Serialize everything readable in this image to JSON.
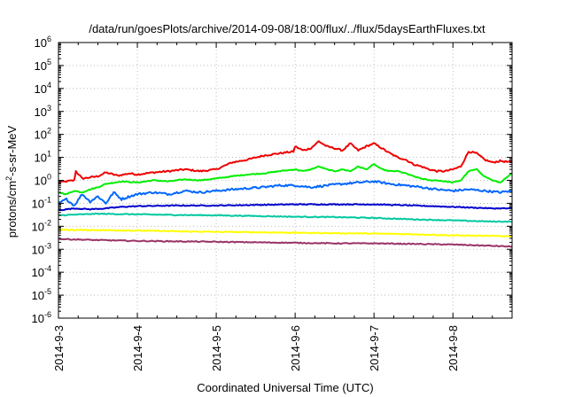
{
  "chart_data": {
    "type": "line",
    "title": "/data/run/goesPlots/archive/2014-09-08/18:00/flux/../flux/5daysEarthFluxes.txt",
    "xlabel": "Coordinated Universal Time (UTC)",
    "ylabel": {
      "base": "protons/cm",
      "sup": "2",
      "rest": "-s-sr-MeV"
    },
    "x_ticks": [
      "2014-9-3",
      "2014-9-4",
      "2014-9-5",
      "2014-9-6",
      "2014-9-7",
      "2014-9-8"
    ],
    "x_range_days": [
      0,
      5.75
    ],
    "y_scale": "log",
    "y_range_exp": [
      -6,
      6
    ],
    "y_tick_exps": [
      "-6",
      "-5",
      "-4",
      "-3",
      "-2",
      "-1",
      "0",
      "1",
      "2",
      "3",
      "4",
      "5",
      "6"
    ],
    "grid": true,
    "legend": "none",
    "series": [
      {
        "color": "#ee0000",
        "x": [
          0,
          0.1,
          0.2,
          0.22,
          0.3,
          0.5,
          0.6,
          0.75,
          0.9,
          1.0,
          1.2,
          1.4,
          1.6,
          1.8,
          2.0,
          2.2,
          2.4,
          2.6,
          2.8,
          2.98,
          3.0,
          3.1,
          3.2,
          3.3,
          3.4,
          3.5,
          3.6,
          3.7,
          3.8,
          3.9,
          4.0,
          4.1,
          4.2,
          4.3,
          4.4,
          4.5,
          4.6,
          4.7,
          4.8,
          4.9,
          5.0,
          5.1,
          5.2,
          5.3,
          5.4,
          5.5,
          5.6,
          5.75
        ],
        "y": [
          0.8,
          0.9,
          1.0,
          2.5,
          1.2,
          1.5,
          2.2,
          1.6,
          2.0,
          1.8,
          2.2,
          2.5,
          3,
          2.5,
          3,
          6,
          8,
          12,
          15,
          18,
          30,
          20,
          25,
          50,
          30,
          25,
          20,
          40,
          20,
          30,
          40,
          25,
          15,
          10,
          8,
          5,
          4,
          3,
          2.5,
          2.5,
          3,
          4,
          18,
          15,
          8,
          6,
          7,
          6
        ]
      },
      {
        "color": "#00ee00",
        "x": [
          0,
          0.1,
          0.2,
          0.3,
          0.4,
          0.5,
          0.6,
          0.8,
          1.0,
          1.2,
          1.4,
          1.6,
          1.8,
          2.0,
          2.2,
          2.4,
          2.6,
          2.8,
          3.0,
          3.1,
          3.2,
          3.3,
          3.4,
          3.5,
          3.6,
          3.7,
          3.8,
          3.9,
          4.0,
          4.1,
          4.2,
          4.3,
          4.4,
          4.5,
          4.6,
          4.7,
          4.8,
          4.9,
          5.0,
          5.1,
          5.2,
          5.3,
          5.4,
          5.5,
          5.6,
          5.75
        ],
        "y": [
          0.3,
          0.25,
          0.35,
          0.3,
          0.4,
          0.5,
          0.7,
          0.9,
          0.8,
          1.0,
          0.9,
          1.1,
          1.0,
          1.2,
          1.5,
          1.8,
          2.0,
          2.5,
          3,
          2.5,
          3,
          4,
          3,
          2.5,
          3,
          2.5,
          4,
          3,
          5,
          3,
          2.5,
          2.5,
          2,
          1.5,
          1.2,
          1.0,
          1.0,
          0.9,
          0.8,
          1.0,
          2.5,
          3,
          1.5,
          1.0,
          0.8,
          2.0
        ]
      },
      {
        "color": "#0066ff",
        "x": [
          0,
          0.1,
          0.2,
          0.3,
          0.4,
          0.5,
          0.6,
          0.7,
          0.8,
          0.9,
          1.0,
          1.2,
          1.4,
          1.6,
          1.8,
          2.0,
          2.2,
          2.4,
          2.6,
          2.8,
          3.0,
          3.2,
          3.4,
          3.6,
          3.8,
          4.0,
          4.2,
          4.4,
          4.6,
          4.8,
          5.0,
          5.2,
          5.4,
          5.6,
          5.75
        ],
        "y": [
          0.1,
          0.15,
          0.08,
          0.25,
          0.12,
          0.2,
          0.1,
          0.3,
          0.15,
          0.2,
          0.25,
          0.3,
          0.25,
          0.35,
          0.3,
          0.35,
          0.4,
          0.45,
          0.5,
          0.6,
          0.6,
          0.5,
          0.6,
          0.7,
          0.8,
          0.9,
          0.7,
          0.6,
          0.5,
          0.4,
          0.35,
          0.4,
          0.35,
          0.3,
          0.35
        ]
      },
      {
        "color": "#0000cc",
        "x": [
          0,
          0.2,
          0.4,
          0.6,
          0.8,
          1.0,
          1.5,
          2.0,
          2.5,
          3.0,
          3.5,
          4.0,
          4.5,
          5.0,
          5.5,
          5.75
        ],
        "y": [
          0.05,
          0.06,
          0.055,
          0.06,
          0.07,
          0.075,
          0.08,
          0.08,
          0.085,
          0.09,
          0.09,
          0.09,
          0.08,
          0.07,
          0.06,
          0.06
        ]
      },
      {
        "color": "#00c8a0",
        "x": [
          0,
          0.5,
          1.0,
          1.5,
          2.0,
          2.5,
          3.0,
          3.5,
          4.0,
          4.5,
          5.0,
          5.5,
          5.75
        ],
        "y": [
          0.03,
          0.035,
          0.033,
          0.031,
          0.03,
          0.028,
          0.026,
          0.025,
          0.023,
          0.02,
          0.018,
          0.016,
          0.016
        ]
      },
      {
        "color": "#ffff00",
        "x": [
          0,
          0.5,
          1.0,
          1.5,
          2.0,
          2.5,
          3.0,
          3.5,
          4.0,
          4.5,
          5.0,
          5.5,
          5.75
        ],
        "y": [
          0.007,
          0.0068,
          0.0065,
          0.006,
          0.0057,
          0.0055,
          0.0052,
          0.005,
          0.0048,
          0.0045,
          0.004,
          0.0038,
          0.0037
        ]
      },
      {
        "color": "#993366",
        "x": [
          0,
          0.5,
          1.0,
          1.5,
          2.0,
          2.5,
          3.0,
          3.5,
          4.0,
          4.5,
          5.0,
          5.5,
          5.75
        ],
        "y": [
          0.0028,
          0.0025,
          0.0023,
          0.0022,
          0.0021,
          0.002,
          0.0019,
          0.0018,
          0.0018,
          0.0017,
          0.0016,
          0.0014,
          0.0013
        ]
      }
    ]
  }
}
